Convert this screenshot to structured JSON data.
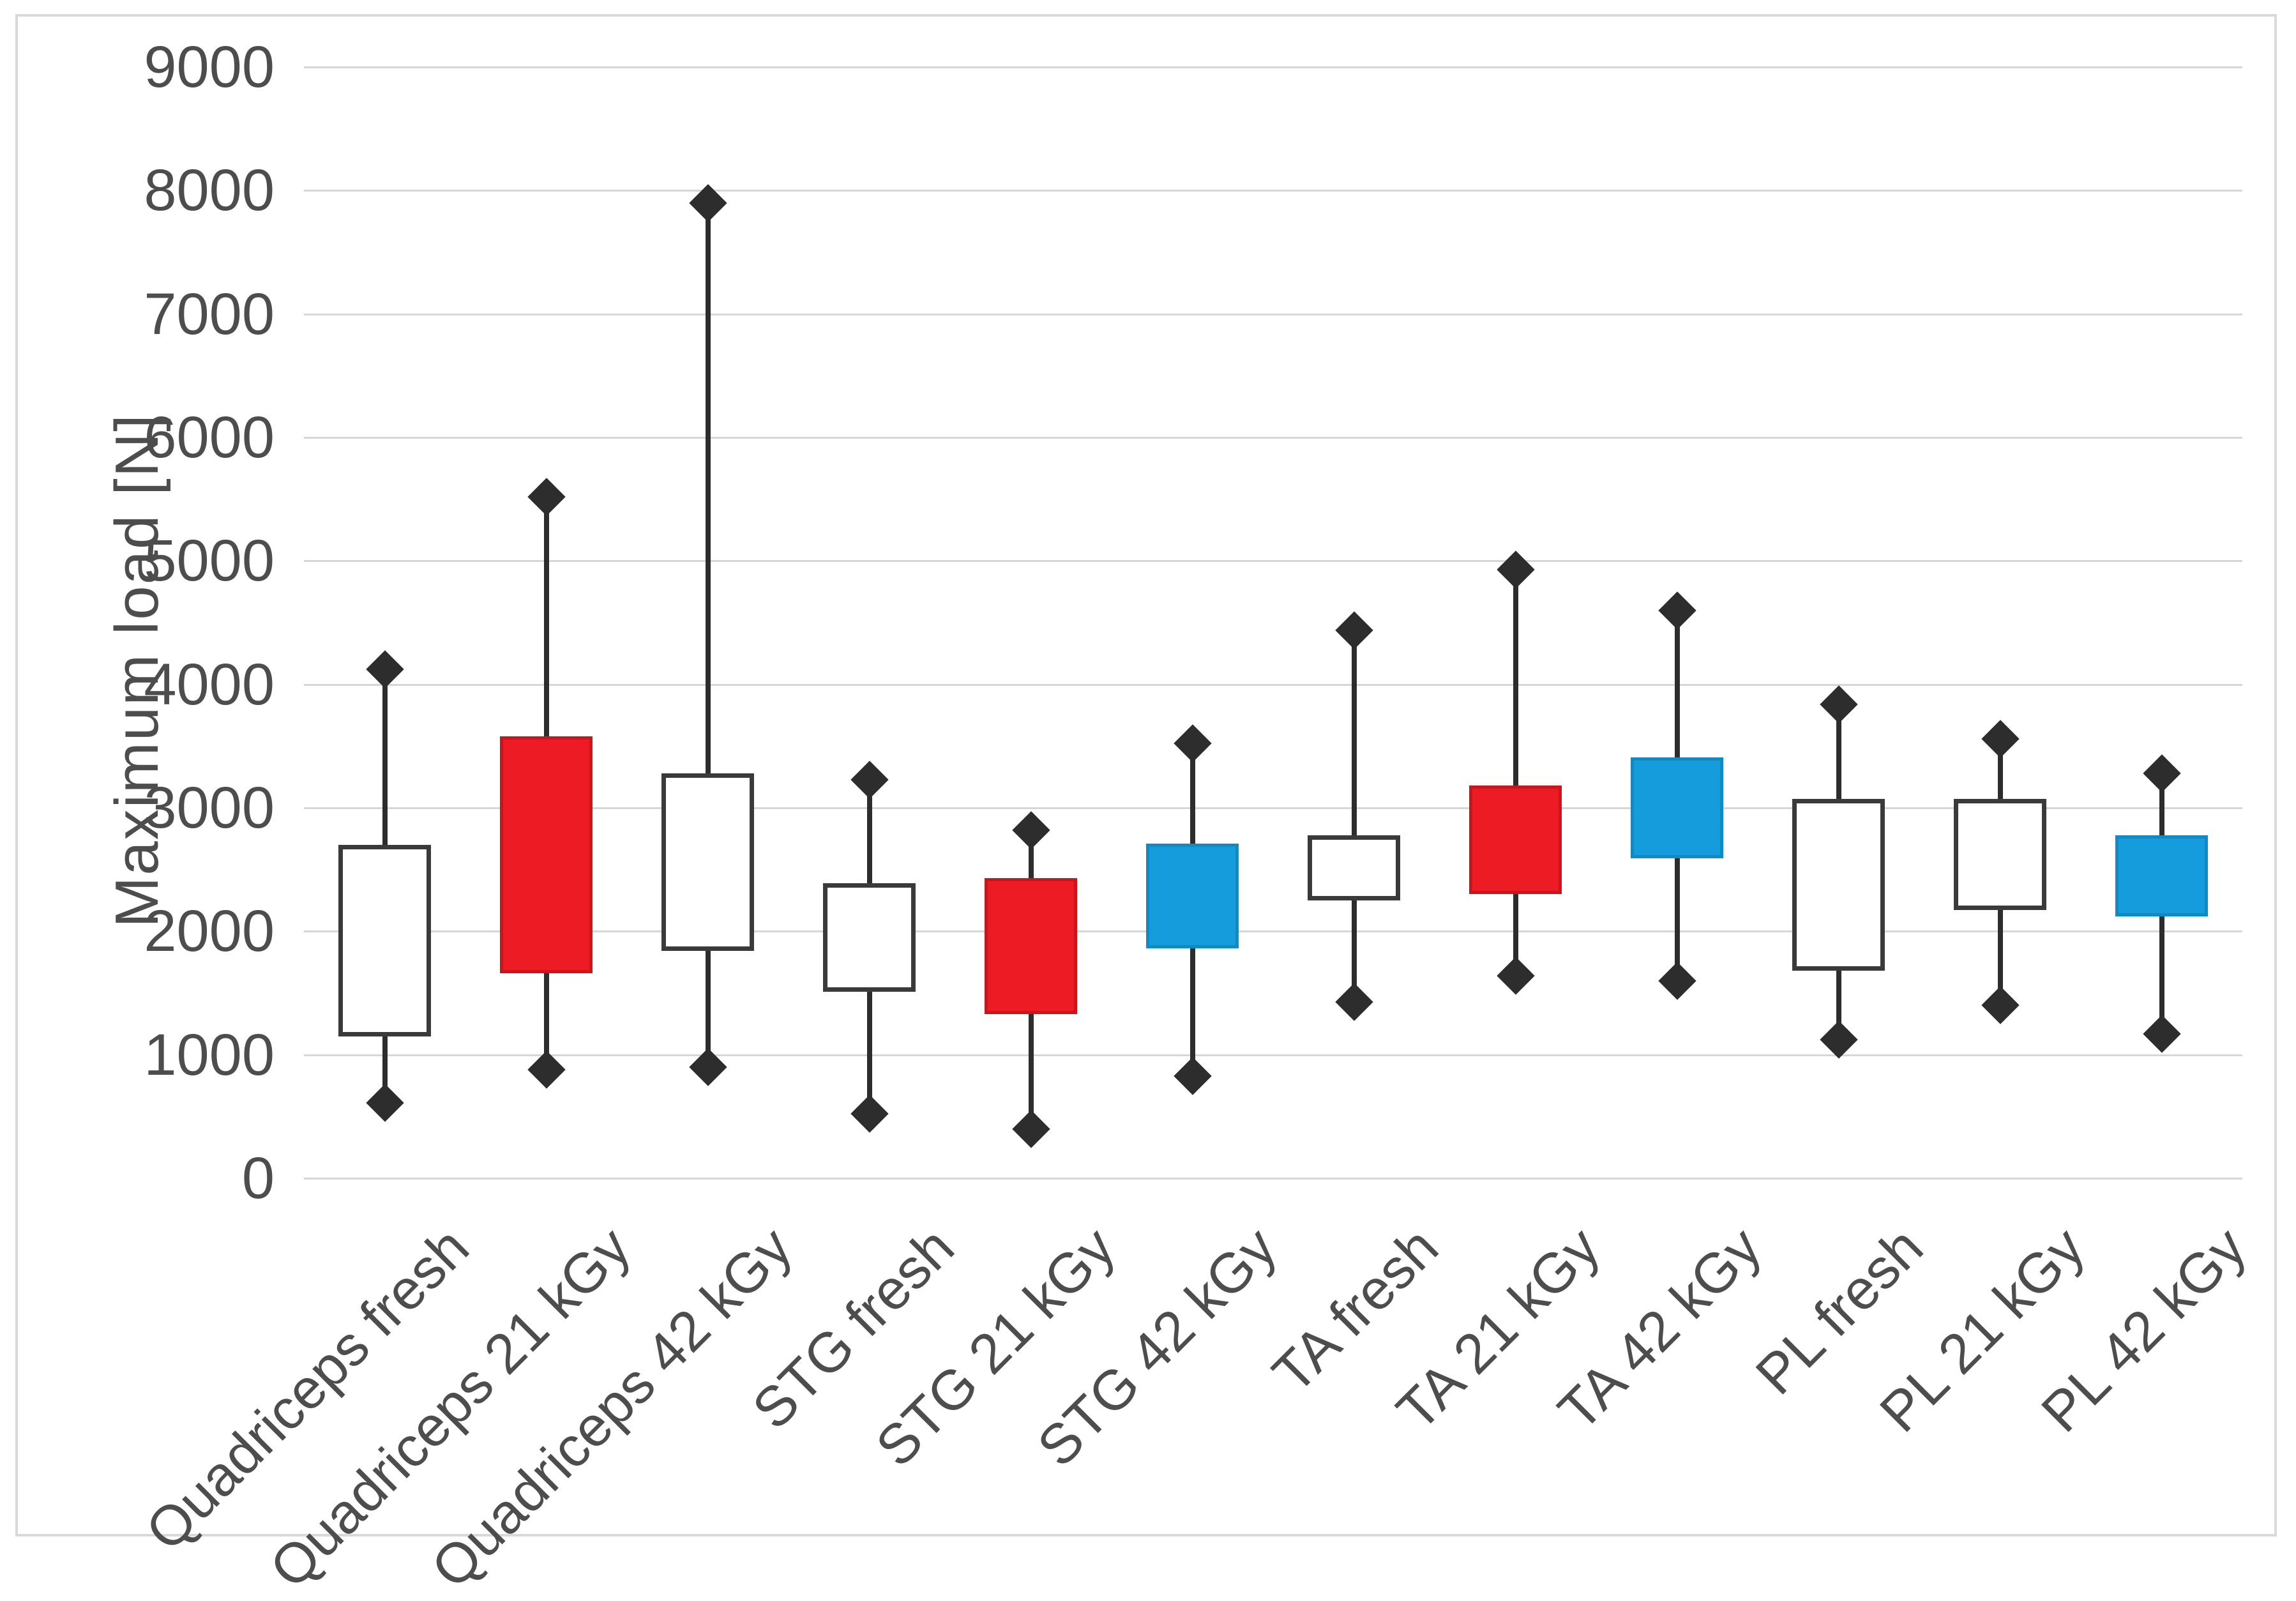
{
  "chart_data": {
    "type": "boxplot",
    "title": "",
    "xlabel": "",
    "ylabel": "Maximum load [N]",
    "ylim": [
      0,
      9000
    ],
    "ytick_interval": 1000,
    "yticks": [
      0,
      1000,
      2000,
      3000,
      4000,
      5000,
      6000,
      7000,
      8000,
      9000
    ],
    "grid": true,
    "legend": "none",
    "whisker_marker": "diamond",
    "median_line": "none",
    "categories": [
      "Quadriceps fresh",
      "Quadriceps 21 kGy",
      "Quadriceps 42 kGy",
      "STG fresh",
      "STG 21 kGy",
      "STG 42 kGy",
      "TA fresh",
      "TA 21 kGy",
      "TA 42 kGy",
      "PL fresh",
      "PL 21 kGy",
      "PL 42 kGy"
    ],
    "series": [
      {
        "category": "Quadriceps fresh",
        "min": 610,
        "q1": 1150,
        "q3": 2700,
        "max": 4120,
        "fill": "white"
      },
      {
        "category": "Quadriceps 21 kGy",
        "min": 880,
        "q1": 1660,
        "q3": 3580,
        "max": 5520,
        "fill": "red"
      },
      {
        "category": "Quadriceps 42 kGy",
        "min": 900,
        "q1": 1840,
        "q3": 3280,
        "max": 7900,
        "fill": "white"
      },
      {
        "category": "STG fresh",
        "min": 520,
        "q1": 1510,
        "q3": 2390,
        "max": 3230,
        "fill": "white"
      },
      {
        "category": "STG 21 kGy",
        "min": 400,
        "q1": 1330,
        "q3": 2430,
        "max": 2820,
        "fill": "red"
      },
      {
        "category": "STG 42 kGy",
        "min": 830,
        "q1": 1860,
        "q3": 2710,
        "max": 3520,
        "fill": "blue"
      },
      {
        "category": "TA fresh",
        "min": 1430,
        "q1": 2250,
        "q3": 2780,
        "max": 4440,
        "fill": "white"
      },
      {
        "category": "TA 21 kGy",
        "min": 1640,
        "q1": 2300,
        "q3": 3180,
        "max": 4930,
        "fill": "red"
      },
      {
        "category": "TA 42 kGy",
        "min": 1600,
        "q1": 2590,
        "q3": 3410,
        "max": 4600,
        "fill": "blue"
      },
      {
        "category": "PL fresh",
        "min": 1120,
        "q1": 1680,
        "q3": 3070,
        "max": 3840,
        "fill": "white"
      },
      {
        "category": "PL 21 kGy",
        "min": 1400,
        "q1": 2170,
        "q3": 3070,
        "max": 3560,
        "fill": "white"
      },
      {
        "category": "PL 42 kGy",
        "min": 1170,
        "q1": 2120,
        "q3": 2780,
        "max": 3280,
        "fill": "blue"
      }
    ]
  },
  "colors": {
    "red": "#ED1C24",
    "blue": "#149CDC",
    "white_fill": "#FFFFFF",
    "box_border": "#3A3A3A",
    "whisker": "#2D2D2D",
    "marker": "#2D2D2D",
    "gridline": "#D6D6D6",
    "axis_text": "#4D4D4D",
    "frame_border": "#D9D9D9",
    "background": "#FFFFFF"
  }
}
